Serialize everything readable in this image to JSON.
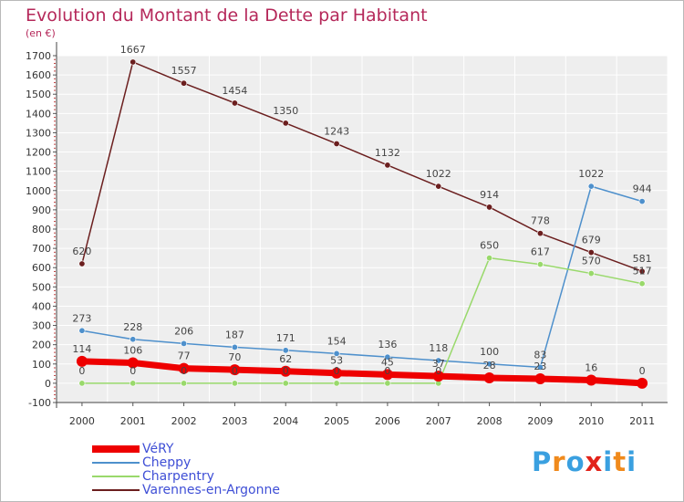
{
  "chart_data": {
    "type": "line",
    "title": "Evolution du Montant de la Dette par Habitant",
    "subtitle": "(en €)",
    "x": [
      "2000",
      "2001",
      "2002",
      "2003",
      "2004",
      "2005",
      "2006",
      "2007",
      "2008",
      "2009",
      "2010",
      "2011"
    ],
    "ylim": [
      -100,
      1700
    ],
    "yticks": [
      -100,
      0,
      100,
      200,
      300,
      400,
      500,
      600,
      700,
      800,
      900,
      1000,
      1100,
      1200,
      1300,
      1400,
      1500,
      1600,
      1700
    ],
    "grid": true,
    "legend_position": "bottom-left",
    "series": [
      {
        "name": "VéRY",
        "color": "#ee0000",
        "values": [
          114,
          106,
          77,
          70,
          62,
          53,
          45,
          37,
          28,
          23,
          16,
          0
        ]
      },
      {
        "name": "Cheppy",
        "color": "#4e90cc",
        "values": [
          273,
          228,
          206,
          187,
          171,
          154,
          136,
          118,
          100,
          83,
          1022,
          944
        ]
      },
      {
        "name": "Charpentry",
        "color": "#99d96b",
        "values": [
          0,
          0,
          0,
          0,
          0,
          0,
          0,
          0,
          650,
          617,
          570,
          517
        ]
      },
      {
        "name": "Varennes-en-Argonne",
        "color": "#6b1e1e",
        "values": [
          620,
          1667,
          1557,
          1454,
          1350,
          1243,
          1132,
          1022,
          914,
          778,
          679,
          581
        ]
      }
    ]
  },
  "logo": {
    "letters": [
      "P",
      "r",
      "o",
      "x",
      "i",
      "t",
      "i"
    ],
    "colors": [
      "#3aa0e0",
      "#f08a1c",
      "#3aa0e0",
      "#e2231a",
      "#3aa0e0",
      "#f08a1c",
      "#3aa0e0"
    ]
  }
}
